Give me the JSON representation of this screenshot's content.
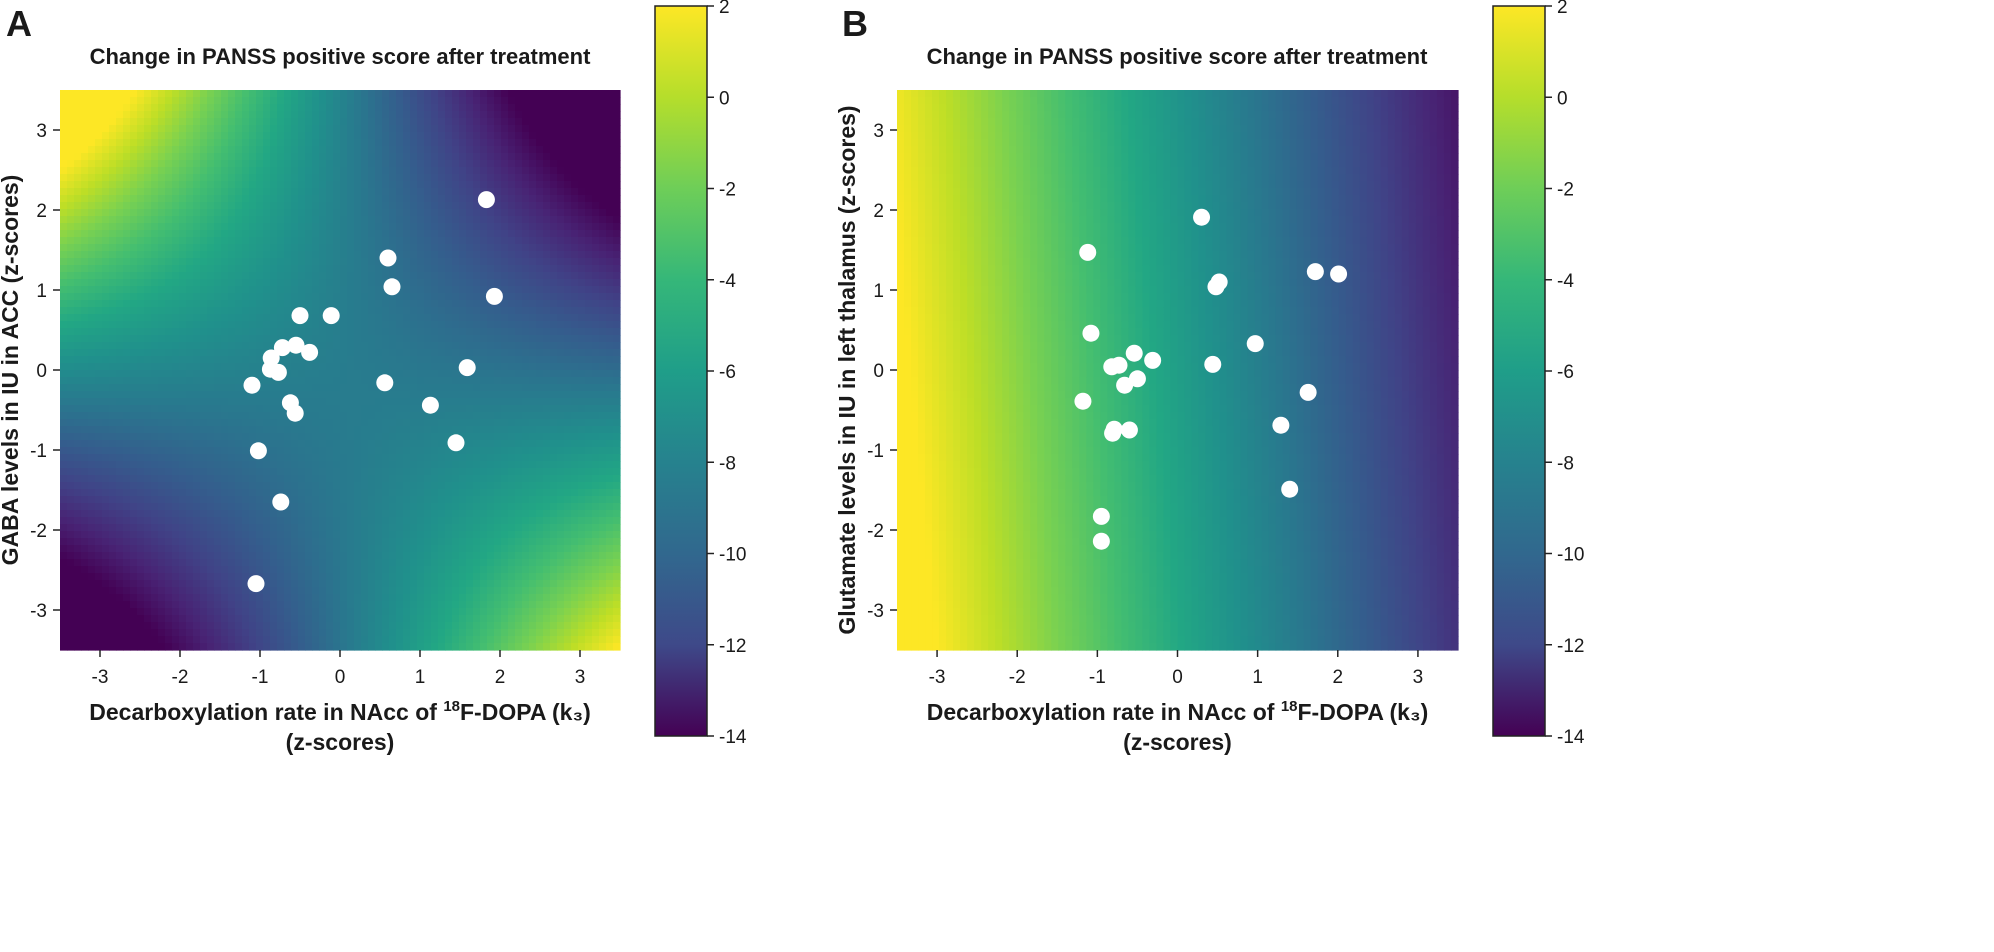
{
  "chart_data": [
    {
      "panel_label": "A",
      "type": "heatmap",
      "surface": "saddle",
      "title": "Change in PANSS positive score after treatment",
      "xlabel_pre": "Decarboxylation rate in NAcc of ",
      "xlabel_sup": "18",
      "xlabel_post": "F-DOPA (k₃)",
      "xlabel_line2": "(z-scores)",
      "ylabel": "GABA levels in IU in ACC (z-scores)",
      "xlim": [
        -3.5,
        3.5
      ],
      "ylim": [
        -3.5,
        3.5
      ],
      "xticks": [
        "-3",
        "-2",
        "-1",
        "0",
        "1",
        "2",
        "3"
      ],
      "yticks": [
        "-3",
        "-2",
        "-1",
        "0",
        "1",
        "2",
        "3"
      ],
      "colorbar": {
        "range": [
          -14,
          2
        ],
        "ticks": [
          "2",
          "0",
          "-2",
          "-4",
          "-6",
          "-8",
          "-10",
          "-12",
          "-14"
        ]
      },
      "points": [
        {
          "x": 1.83,
          "y": 2.13
        },
        {
          "x": 0.6,
          "y": 1.4
        },
        {
          "x": 0.65,
          "y": 1.04
        },
        {
          "x": 1.93,
          "y": 0.92
        },
        {
          "x": -0.5,
          "y": 0.68
        },
        {
          "x": -0.11,
          "y": 0.68
        },
        {
          "x": -0.55,
          "y": 0.31
        },
        {
          "x": -0.72,
          "y": 0.28
        },
        {
          "x": -0.38,
          "y": 0.22
        },
        {
          "x": -0.86,
          "y": 0.15
        },
        {
          "x": -0.87,
          "y": 0.01
        },
        {
          "x": -0.77,
          "y": -0.03
        },
        {
          "x": -1.1,
          "y": -0.19
        },
        {
          "x": 0.56,
          "y": -0.16
        },
        {
          "x": 1.59,
          "y": 0.03
        },
        {
          "x": -0.62,
          "y": -0.41
        },
        {
          "x": -0.56,
          "y": -0.54
        },
        {
          "x": 1.13,
          "y": -0.44
        },
        {
          "x": 1.45,
          "y": -0.91
        },
        {
          "x": -1.02,
          "y": -1.01
        },
        {
          "x": -0.74,
          "y": -1.65
        },
        {
          "x": -1.05,
          "y": -2.67
        }
      ]
    },
    {
      "panel_label": "B",
      "type": "heatmap",
      "surface": "gradient",
      "title": "Change in PANSS positive score after treatment",
      "xlabel_pre": "Decarboxylation rate in NAcc of ",
      "xlabel_sup": "18",
      "xlabel_post": "F-DOPA (k₃)",
      "xlabel_line2": "(z-scores)",
      "ylabel": "Glutamate levels in IU in left thalamus (z-scores)",
      "xlim": [
        -3.5,
        3.5
      ],
      "ylim": [
        -3.5,
        3.5
      ],
      "xticks": [
        "-3",
        "-2",
        "-1",
        "0",
        "1",
        "2",
        "3"
      ],
      "yticks": [
        "-3",
        "-2",
        "-1",
        "0",
        "1",
        "2",
        "3"
      ],
      "colorbar": {
        "range": [
          -14,
          2
        ],
        "ticks": [
          "2",
          "0",
          "-2",
          "-4",
          "-6",
          "-8",
          "-10",
          "-12",
          "-14"
        ]
      },
      "points": [
        {
          "x": 0.3,
          "y": 1.91
        },
        {
          "x": -1.12,
          "y": 1.47
        },
        {
          "x": 1.72,
          "y": 1.23
        },
        {
          "x": 2.01,
          "y": 1.2
        },
        {
          "x": 0.52,
          "y": 1.1
        },
        {
          "x": 0.48,
          "y": 1.04
        },
        {
          "x": -1.08,
          "y": 0.46
        },
        {
          "x": 0.97,
          "y": 0.33
        },
        {
          "x": -0.54,
          "y": 0.21
        },
        {
          "x": -0.31,
          "y": 0.12
        },
        {
          "x": -0.73,
          "y": 0.06
        },
        {
          "x": -0.82,
          "y": 0.04
        },
        {
          "x": 0.44,
          "y": 0.07
        },
        {
          "x": -0.5,
          "y": -0.11
        },
        {
          "x": -0.66,
          "y": -0.19
        },
        {
          "x": -1.18,
          "y": -0.39
        },
        {
          "x": 1.63,
          "y": -0.28
        },
        {
          "x": -0.79,
          "y": -0.74
        },
        {
          "x": -0.81,
          "y": -0.79
        },
        {
          "x": -0.6,
          "y": -0.75
        },
        {
          "x": 1.29,
          "y": -0.69
        },
        {
          "x": 1.4,
          "y": -1.49
        },
        {
          "x": -0.95,
          "y": -1.83
        },
        {
          "x": -0.95,
          "y": -2.14
        }
      ]
    }
  ]
}
